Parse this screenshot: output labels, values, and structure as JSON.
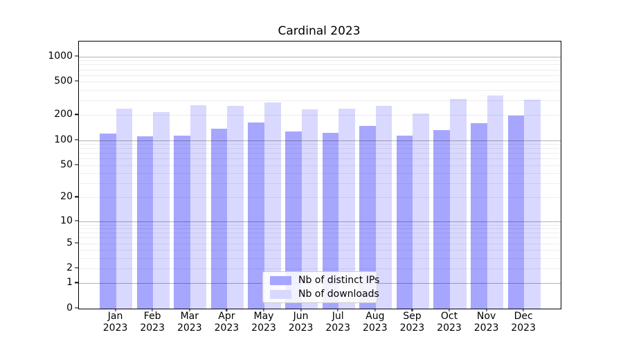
{
  "chart_data": {
    "type": "bar",
    "title": "Cardinal 2023",
    "categories": [
      "Jan",
      "Feb",
      "Mar",
      "Apr",
      "May",
      "Jun",
      "Jul",
      "Aug",
      "Sep",
      "Oct",
      "Nov",
      "Dec"
    ],
    "year": "2023",
    "series": [
      {
        "name": "Nb of distinct IPs",
        "color": "#a6a6ff",
        "values": [
          121,
          111,
          114,
          138,
          164,
          128,
          122,
          149,
          114,
          133,
          161,
          197
        ]
      },
      {
        "name": "Nb of downloads",
        "color": "#d9d9ff",
        "values": [
          237,
          216,
          265,
          256,
          282,
          233,
          240,
          256,
          209,
          310,
          345,
          305
        ]
      }
    ],
    "xlabel": "",
    "ylabel": "",
    "yscale": "log10(value+1)",
    "ylim": [
      0,
      1500
    ],
    "yticks": [
      1000,
      500,
      200,
      100,
      50,
      20,
      10,
      5,
      2,
      1,
      0
    ],
    "grid": "on",
    "legend_position": "lower center",
    "colors": {
      "major_gridline": "#b3b3b3",
      "minor_gridline": "#ececec",
      "axis": "#000000",
      "legend_border": "#cccccc"
    }
  }
}
